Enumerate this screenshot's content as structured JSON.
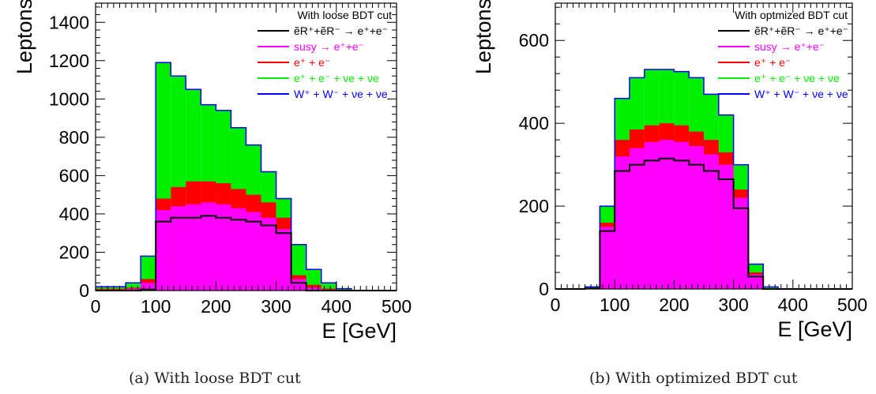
{
  "figure": {
    "captions": [
      "(a) With loose BDT cut",
      "(b) With optimized BDT cut"
    ]
  },
  "chart_data": [
    {
      "type": "area",
      "title": "With loose BDT cut",
      "xlabel": "E [GeV]",
      "ylabel": "Leptons",
      "xlim": [
        0,
        500
      ],
      "ylim": [
        0,
        1500
      ],
      "x_ticks": [
        "0",
        "100",
        "200",
        "300",
        "400",
        "500"
      ],
      "y_ticks": [
        "0",
        "200",
        "400",
        "600",
        "800",
        "1000",
        "1200",
        "1400"
      ],
      "legend_position": "top-right",
      "x": [
        12.5,
        37.5,
        62.5,
        87.5,
        112.5,
        137.5,
        162.5,
        187.5,
        212.5,
        237.5,
        262.5,
        287.5,
        312.5,
        337.5,
        362.5,
        387.5,
        412.5,
        437.5,
        462.5,
        487.5
      ],
      "series": [
        {
          "label": "W⁺ + W⁻ + νe + νe",
          "color": "#0000ff",
          "style": "line",
          "values": [
            20,
            20,
            40,
            180,
            1190,
            1120,
            1050,
            970,
            940,
            850,
            760,
            620,
            480,
            240,
            110,
            40,
            10,
            0,
            0,
            0
          ]
        },
        {
          "label": "e⁺ + e⁻ + νe + νe",
          "color": "#00ee00",
          "style": "fill",
          "values": [
            20,
            20,
            40,
            180,
            1190,
            1120,
            1050,
            970,
            940,
            850,
            760,
            620,
            480,
            240,
            110,
            40,
            10,
            0,
            0,
            0
          ]
        },
        {
          "label": "e⁺ + e⁻",
          "color": "#ff0000",
          "style": "fill",
          "values": [
            10,
            10,
            15,
            60,
            480,
            540,
            570,
            570,
            560,
            530,
            500,
            460,
            380,
            80,
            30,
            10,
            0,
            0,
            0,
            0
          ]
        },
        {
          "label": "susy → e⁺+e⁻",
          "color": "#ff00ff",
          "style": "fill",
          "values": [
            5,
            5,
            10,
            40,
            420,
            440,
            450,
            460,
            450,
            430,
            410,
            380,
            320,
            60,
            15,
            5,
            0,
            0,
            0,
            0
          ]
        },
        {
          "label": "ẽR⁺+ẽR⁻ → e⁺+e⁻",
          "color": "#000000",
          "style": "line",
          "values": [
            0,
            0,
            0,
            5,
            360,
            380,
            380,
            390,
            380,
            370,
            360,
            340,
            300,
            40,
            0,
            0,
            0,
            0,
            0,
            0
          ]
        }
      ]
    },
    {
      "type": "area",
      "title": "With optmized BDT cut",
      "xlabel": "E [GeV]",
      "ylabel": "Leptons",
      "xlim": [
        0,
        500
      ],
      "ylim": [
        0,
        690
      ],
      "x_ticks": [
        "0",
        "100",
        "200",
        "300",
        "400",
        "500"
      ],
      "y_ticks": [
        "0",
        "200",
        "400",
        "600"
      ],
      "legend_position": "top-right",
      "x": [
        12.5,
        37.5,
        62.5,
        87.5,
        112.5,
        137.5,
        162.5,
        187.5,
        212.5,
        237.5,
        262.5,
        287.5,
        312.5,
        337.5,
        362.5,
        387.5,
        412.5,
        437.5,
        462.5,
        487.5
      ],
      "series": [
        {
          "label": "W⁺ + W⁻ + νe + νe",
          "color": "#0000ff",
          "style": "line",
          "values": [
            0,
            0,
            5,
            200,
            460,
            510,
            530,
            530,
            525,
            510,
            470,
            420,
            300,
            60,
            5,
            0,
            0,
            0,
            0,
            0
          ]
        },
        {
          "label": "e⁺ + e⁻ + νe + νe",
          "color": "#00ee00",
          "style": "fill",
          "values": [
            0,
            0,
            5,
            200,
            460,
            510,
            530,
            530,
            525,
            510,
            470,
            420,
            300,
            60,
            5,
            0,
            0,
            0,
            0,
            0
          ]
        },
        {
          "label": "e⁺ + e⁻",
          "color": "#ff0000",
          "style": "fill",
          "values": [
            0,
            0,
            3,
            160,
            360,
            385,
            395,
            400,
            395,
            380,
            360,
            330,
            240,
            40,
            0,
            0,
            0,
            0,
            0,
            0
          ]
        },
        {
          "label": "susy → e⁺+e⁻",
          "color": "#ff00ff",
          "style": "fill",
          "values": [
            0,
            0,
            2,
            150,
            320,
            340,
            355,
            360,
            355,
            345,
            325,
            300,
            220,
            35,
            0,
            0,
            0,
            0,
            0,
            0
          ]
        },
        {
          "label": "ẽR⁺+ẽR⁻ → e⁺+e⁻",
          "color": "#000000",
          "style": "line",
          "values": [
            0,
            0,
            1,
            140,
            285,
            300,
            310,
            315,
            310,
            300,
            285,
            265,
            195,
            30,
            0,
            0,
            0,
            0,
            0,
            0
          ]
        }
      ]
    }
  ]
}
